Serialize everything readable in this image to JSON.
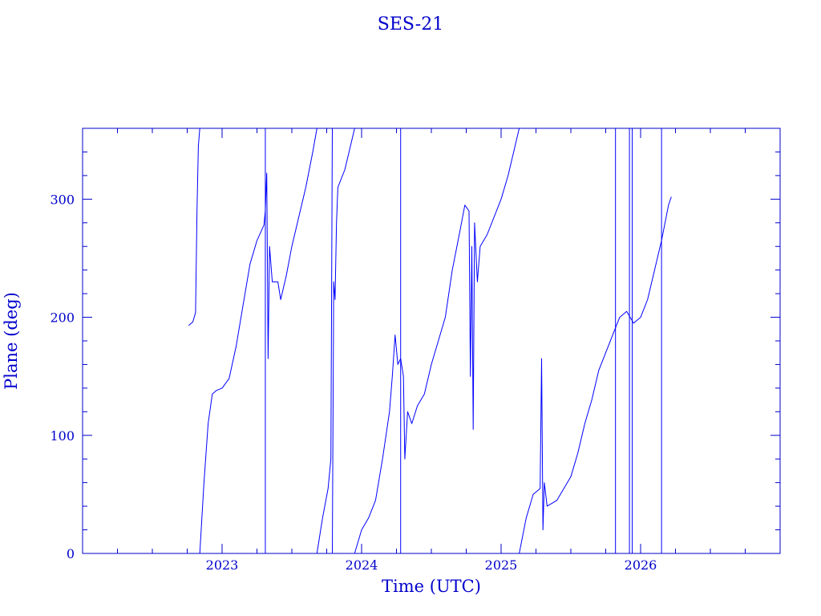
{
  "chart_data": {
    "type": "line",
    "title": "SES-21",
    "xlabel": "Time (UTC)",
    "ylabel": "Plane (deg)",
    "xlim": [
      2022.0,
      2027.0
    ],
    "ylim": [
      0,
      360
    ],
    "x_ticks": [
      {
        "value": 2023,
        "label": "2023"
      },
      {
        "value": 2024,
        "label": "2024"
      },
      {
        "value": 2025,
        "label": "2025"
      },
      {
        "value": 2026,
        "label": "2026"
      }
    ],
    "y_ticks": [
      {
        "value": 0,
        "label": "0"
      },
      {
        "value": 100,
        "label": "100"
      },
      {
        "value": 200,
        "label": "200"
      },
      {
        "value": 300,
        "label": "300"
      }
    ],
    "colors": {
      "axis": "#0000cc",
      "series": "#0000ff"
    },
    "series": [
      {
        "segments": [
          [
            [
              2022.76,
              193
            ],
            [
              2022.79,
              196
            ],
            [
              2022.81,
              204
            ],
            [
              2022.82,
              290
            ],
            [
              2022.83,
              345
            ],
            [
              2022.84,
              360
            ]
          ],
          [
            [
              2022.84,
              0
            ],
            [
              2022.87,
              60
            ],
            [
              2022.9,
              110
            ],
            [
              2022.93,
              135
            ],
            [
              2022.96,
              138
            ],
            [
              2023.0,
              140
            ],
            [
              2023.05,
              148
            ],
            [
              2023.1,
              175
            ],
            [
              2023.15,
              210
            ],
            [
              2023.2,
              245
            ],
            [
              2023.25,
              265
            ],
            [
              2023.3,
              278
            ],
            [
              2023.31,
              290
            ],
            [
              2023.32,
              322
            ],
            [
              2023.33,
              165
            ],
            [
              2023.34,
              260
            ],
            [
              2023.36,
              230
            ],
            [
              2023.4,
              230
            ],
            [
              2023.42,
              215
            ],
            [
              2023.46,
              235
            ],
            [
              2023.5,
              260
            ],
            [
              2023.55,
              285
            ],
            [
              2023.6,
              310
            ],
            [
              2023.65,
              340
            ],
            [
              2023.68,
              360
            ]
          ],
          [
            [
              2023.68,
              0
            ],
            [
              2023.72,
              30
            ],
            [
              2023.76,
              55
            ],
            [
              2023.78,
              80
            ],
            [
              2023.79,
              360
            ]
          ],
          [
            [
              2023.79,
              0
            ],
            [
              2023.8,
              230
            ],
            [
              2023.81,
              215
            ],
            [
              2023.82,
              280
            ],
            [
              2023.83,
              310
            ],
            [
              2023.88,
              325
            ],
            [
              2023.92,
              345
            ],
            [
              2023.95,
              360
            ]
          ],
          [
            [
              2023.95,
              0
            ],
            [
              2024.0,
              20
            ],
            [
              2024.05,
              30
            ],
            [
              2024.1,
              45
            ],
            [
              2024.15,
              80
            ],
            [
              2024.2,
              120
            ],
            [
              2024.22,
              150
            ],
            [
              2024.24,
              185
            ],
            [
              2024.26,
              160
            ],
            [
              2024.28,
              165
            ],
            [
              2024.3,
              150
            ],
            [
              2024.31,
              80
            ],
            [
              2024.33,
              120
            ],
            [
              2024.36,
              110
            ],
            [
              2024.4,
              125
            ],
            [
              2024.45,
              135
            ],
            [
              2024.5,
              160
            ],
            [
              2024.55,
              180
            ],
            [
              2024.6,
              200
            ],
            [
              2024.65,
              240
            ],
            [
              2024.7,
              270
            ],
            [
              2024.74,
              295
            ],
            [
              2024.77,
              290
            ],
            [
              2024.78,
              150
            ],
            [
              2024.79,
              260
            ],
            [
              2024.8,
              105
            ],
            [
              2024.81,
              280
            ],
            [
              2024.83,
              230
            ],
            [
              2024.85,
              260
            ],
            [
              2024.9,
              270
            ],
            [
              2024.95,
              285
            ],
            [
              2025.0,
              300
            ],
            [
              2025.05,
              320
            ],
            [
              2025.1,
              345
            ],
            [
              2025.13,
              360
            ]
          ],
          [
            [
              2025.13,
              0
            ],
            [
              2025.18,
              30
            ],
            [
              2025.23,
              50
            ],
            [
              2025.28,
              55
            ],
            [
              2025.29,
              165
            ],
            [
              2025.3,
              20
            ],
            [
              2025.31,
              60
            ],
            [
              2025.33,
              40
            ],
            [
              2025.4,
              45
            ],
            [
              2025.5,
              65
            ],
            [
              2025.55,
              85
            ],
            [
              2025.6,
              110
            ],
            [
              2025.65,
              130
            ],
            [
              2025.7,
              155
            ],
            [
              2025.75,
              170
            ],
            [
              2025.8,
              185
            ],
            [
              2025.85,
              200
            ],
            [
              2025.9,
              205
            ],
            [
              2025.95,
              195
            ],
            [
              2026.0,
              200
            ],
            [
              2026.05,
              215
            ],
            [
              2026.1,
              240
            ],
            [
              2026.15,
              265
            ],
            [
              2026.2,
              295
            ],
            [
              2026.22,
              302
            ]
          ]
        ]
      }
    ],
    "spikes": [
      2023.31,
      2024.28,
      2025.82,
      2025.92,
      2025.94,
      2026.15
    ]
  }
}
